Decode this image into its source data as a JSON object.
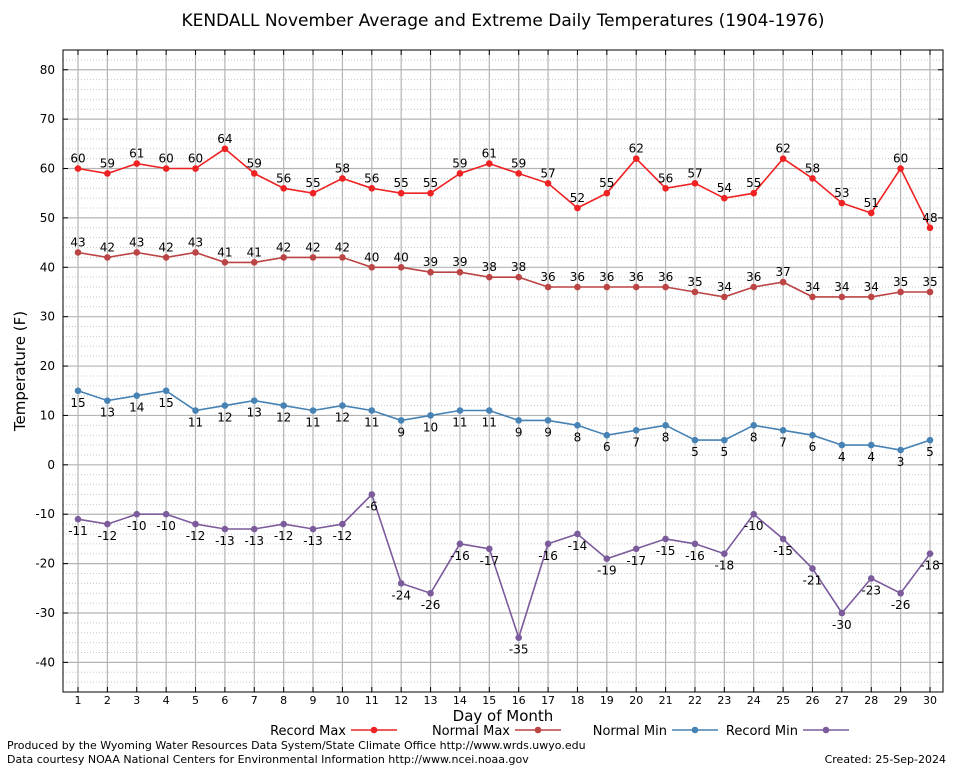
{
  "chart_data": {
    "type": "line",
    "title": "KENDALL November Average and Extreme Daily Temperatures (1904-1976)",
    "xlabel": "Day of Month",
    "ylabel": "Temperature (F)",
    "ylim": [
      -46,
      84
    ],
    "yticks": [
      -40,
      -30,
      -20,
      -10,
      0,
      10,
      20,
      30,
      40,
      50,
      60,
      70,
      80
    ],
    "categories": [
      1,
      2,
      3,
      4,
      5,
      6,
      7,
      8,
      9,
      10,
      11,
      12,
      13,
      14,
      15,
      16,
      17,
      18,
      19,
      20,
      21,
      22,
      23,
      24,
      25,
      26,
      27,
      28,
      29,
      30
    ],
    "grid": true,
    "legend_position": "bottom",
    "series": [
      {
        "name": "Record Max",
        "color": "#ee2222",
        "values": [
          60,
          59,
          61,
          60,
          60,
          64,
          59,
          56,
          55,
          58,
          56,
          55,
          55,
          59,
          61,
          59,
          57,
          52,
          55,
          62,
          56,
          57,
          54,
          55,
          62,
          58,
          53,
          51,
          60,
          48
        ]
      },
      {
        "name": "Normal Max",
        "color": "#bb4444",
        "values": [
          43,
          42,
          43,
          42,
          43,
          41,
          41,
          42,
          42,
          42,
          40,
          40,
          39,
          39,
          38,
          38,
          36,
          36,
          36,
          36,
          36,
          35,
          34,
          36,
          37,
          34,
          34,
          34,
          35,
          35
        ]
      },
      {
        "name": "Normal Min",
        "color": "#4682b4",
        "values": [
          15,
          13,
          14,
          15,
          11,
          12,
          13,
          12,
          11,
          12,
          11,
          9,
          10,
          11,
          11,
          9,
          9,
          8,
          6,
          7,
          8,
          5,
          5,
          8,
          7,
          6,
          4,
          4,
          3,
          5
        ]
      },
      {
        "name": "Record Min",
        "color": "#7b5b9b",
        "values": [
          -11,
          -12,
          -10,
          -10,
          -12,
          -13,
          -13,
          -12,
          -13,
          -12,
          -6,
          -24,
          -26,
          -16,
          -17,
          -35,
          -16,
          -14,
          -19,
          -17,
          -15,
          -16,
          -18,
          -10,
          -15,
          -21,
          -30,
          -23,
          -26,
          -18
        ]
      }
    ]
  },
  "footer": {
    "credit_line1": "Produced by the Wyoming Water Resources Data System/State Climate Office http://www.wrds.uwyo.edu",
    "credit_line2": "Data courtesy NOAA National Centers for Environmental Information http://www.ncei.noaa.gov",
    "created": "Created:  25-Sep-2024"
  }
}
